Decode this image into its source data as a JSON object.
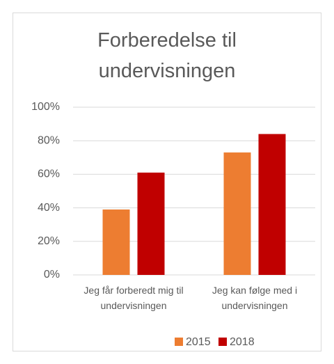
{
  "chart_data": {
    "type": "bar",
    "title": "Forberedelse til undervisningen",
    "categories": [
      "Jeg får forberedt mig til undervisningen",
      "Jeg kan følge med i undervisningen"
    ],
    "series": [
      {
        "name": "2015",
        "color": "#ed7d31",
        "values": [
          39,
          73
        ]
      },
      {
        "name": "2018",
        "color": "#c00000",
        "values": [
          61,
          84
        ]
      }
    ],
    "ylim": [
      0,
      100
    ],
    "yticks": [
      {
        "value": 0,
        "label": "0%"
      },
      {
        "value": 20,
        "label": "20%"
      },
      {
        "value": 40,
        "label": "40%"
      },
      {
        "value": 60,
        "label": "60%"
      },
      {
        "value": 80,
        "label": "80%"
      },
      {
        "value": 100,
        "label": "100%"
      }
    ],
    "grid": true,
    "legend": "bottom"
  }
}
